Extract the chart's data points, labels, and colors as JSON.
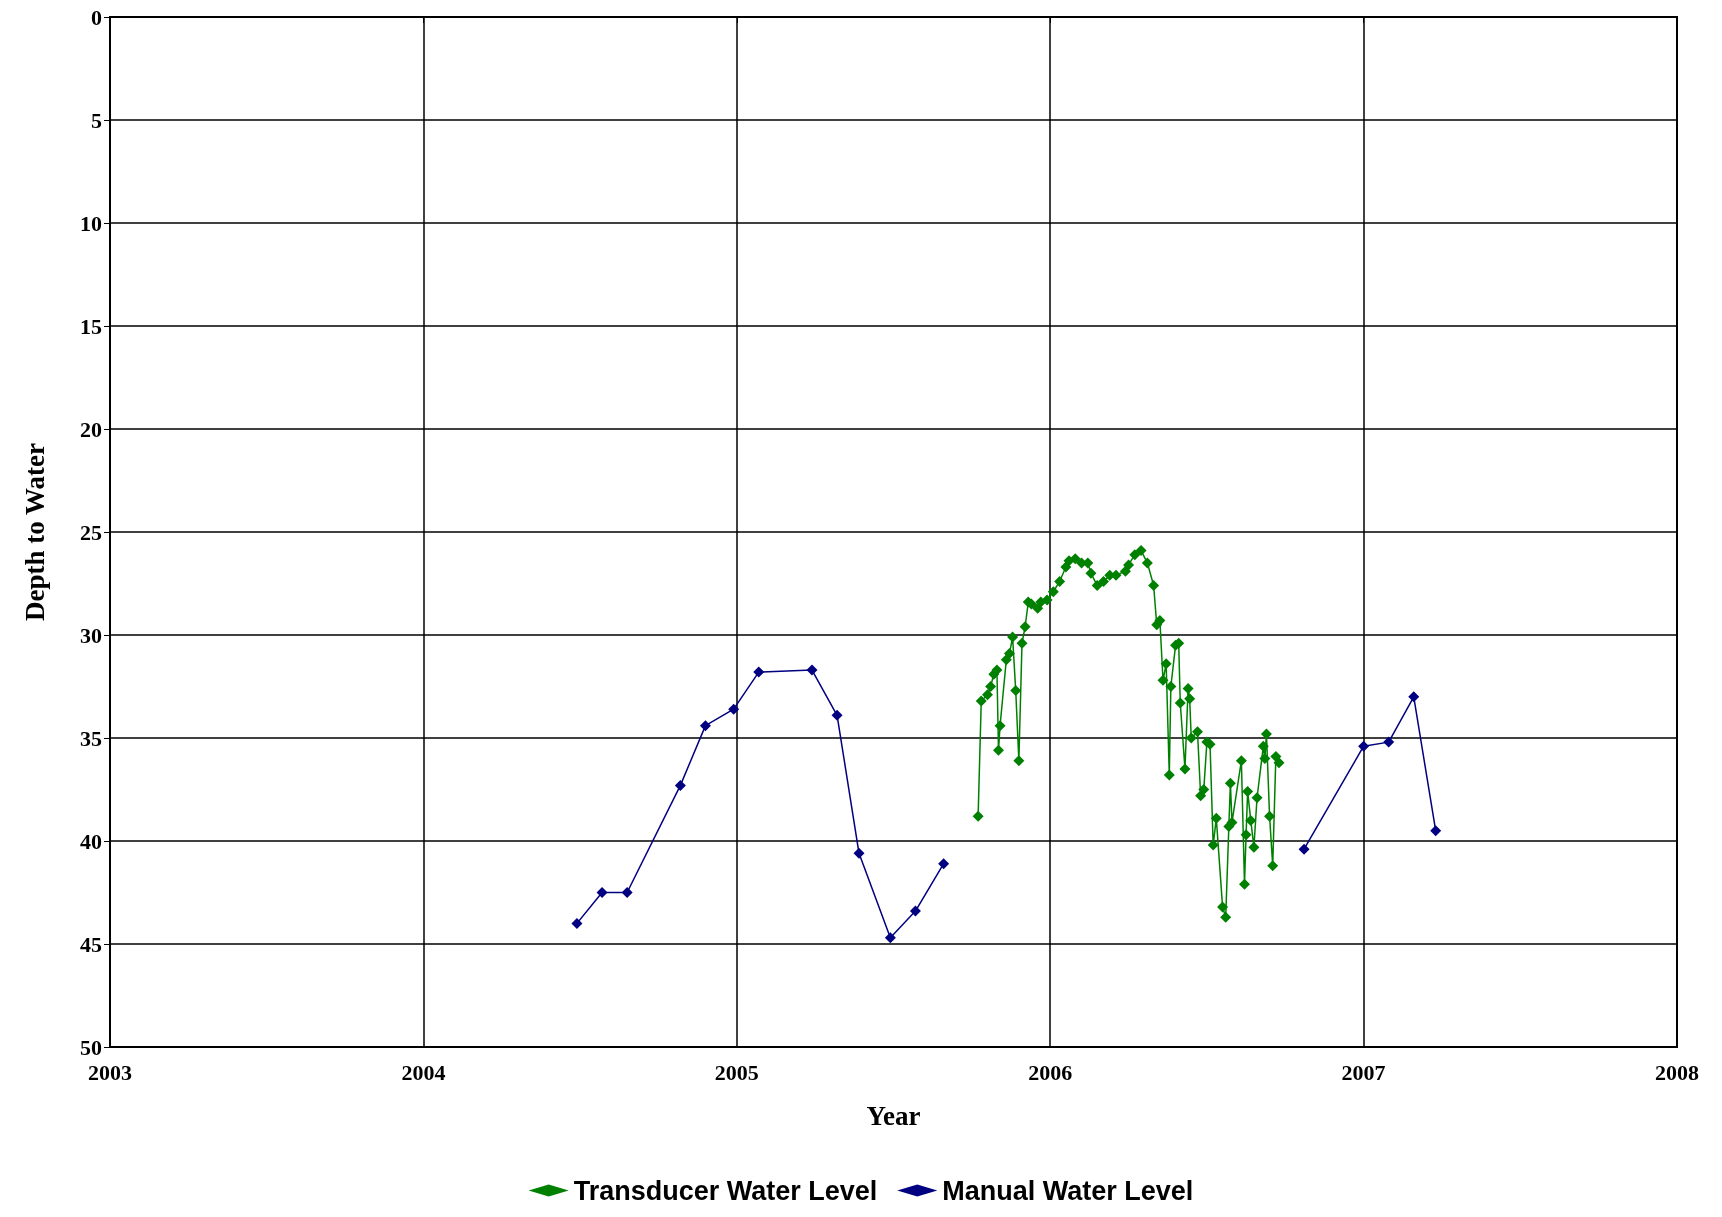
{
  "chart_data": {
    "type": "line",
    "xlabel": "Year",
    "ylabel": "Depth to Water",
    "xlim": [
      2003,
      2008
    ],
    "xticks": [
      2003,
      2004,
      2005,
      2006,
      2007,
      2008
    ],
    "ylim": [
      50,
      0
    ],
    "yticks": [
      0,
      5,
      10,
      15,
      20,
      25,
      30,
      35,
      40,
      45,
      50
    ],
    "grid": true,
    "legend": "bottom",
    "marker": "diamond",
    "line_style": "solid",
    "series": [
      {
        "name": "Transducer Water Level",
        "color": "#008000",
        "x": [
          2005.77,
          2005.78,
          2005.8,
          2005.81,
          2005.82,
          2005.83,
          2005.835,
          2005.84,
          2005.86,
          2005.87,
          2005.88,
          2005.89,
          2005.9,
          2005.91,
          2005.92,
          2005.93,
          2005.94,
          2005.96,
          2005.97,
          2005.99,
          2006.01,
          2006.03,
          2006.05,
          2006.06,
          2006.08,
          2006.1,
          2006.12,
          2006.13,
          2006.15,
          2006.17,
          2006.19,
          2006.21,
          2006.24,
          2006.25,
          2006.27,
          2006.29,
          2006.31,
          2006.33,
          2006.34,
          2006.35,
          2006.36,
          2006.37,
          2006.38,
          2006.385,
          2006.4,
          2006.41,
          2006.415,
          2006.43,
          2006.44,
          2006.445,
          2006.45,
          2006.47,
          2006.48,
          2006.49,
          2006.5,
          2006.51,
          2006.52,
          2006.53,
          2006.55,
          2006.56,
          2006.57,
          2006.575,
          2006.58,
          2006.61,
          2006.62,
          2006.625,
          2006.63,
          2006.64,
          2006.65,
          2006.66,
          2006.68,
          2006.685,
          2006.69,
          2006.7,
          2006.71,
          2006.72,
          2006.73
        ],
        "values": [
          38.8,
          33.2,
          32.9,
          32.5,
          31.9,
          31.7,
          35.6,
          34.4,
          31.2,
          30.9,
          30.1,
          32.7,
          36.1,
          30.4,
          29.6,
          28.4,
          28.5,
          28.7,
          28.4,
          28.3,
          27.9,
          27.4,
          26.7,
          26.4,
          26.3,
          26.5,
          26.5,
          27.0,
          27.6,
          27.4,
          27.1,
          27.1,
          26.9,
          26.6,
          26.1,
          25.9,
          26.5,
          27.6,
          29.5,
          29.3,
          32.2,
          31.4,
          36.8,
          32.5,
          30.5,
          30.4,
          33.3,
          36.5,
          32.6,
          33.1,
          35.0,
          34.7,
          37.8,
          37.5,
          35.2,
          35.3,
          40.2,
          38.9,
          43.2,
          43.7,
          39.3,
          37.2,
          39.1,
          36.1,
          42.1,
          39.7,
          37.6,
          39.0,
          40.3,
          37.9,
          35.4,
          36.0,
          34.8,
          38.8,
          41.2,
          35.9,
          36.2
        ]
      },
      {
        "name": "Manual Water Level",
        "color": "#000080",
        "x": [
          2004.49,
          2004.57,
          2004.65,
          2004.82,
          2004.9,
          2004.99,
          2005.07,
          2005.24,
          2005.32,
          2005.39,
          2005.49,
          2005.57,
          2005.66,
          2006.2,
          2006.81,
          2007.0,
          2007.08,
          2007.16,
          2007.23
        ],
        "values": [
          44.0,
          42.5,
          42.5,
          37.3,
          34.4,
          33.6,
          31.8,
          31.7,
          33.9,
          40.6,
          44.7,
          43.4,
          41.1,
          null,
          40.4,
          35.4,
          35.2,
          33.0,
          39.5
        ]
      }
    ]
  }
}
